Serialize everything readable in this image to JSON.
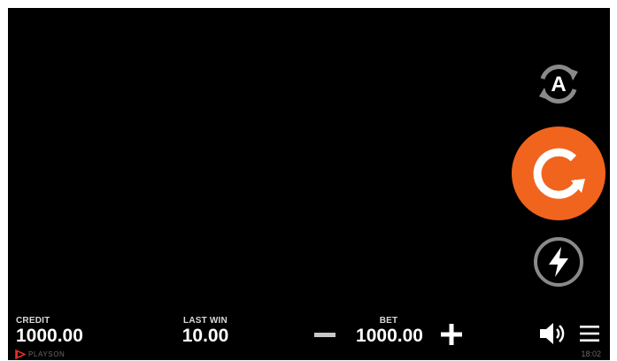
{
  "colors": {
    "background": "#000000",
    "spin_button": "#f0641e",
    "icon_gray": "#8a8a8a",
    "text": "#ffffff",
    "label_text": "#d8d8d8",
    "brand_red": "#e0301e"
  },
  "icons": {
    "autoplay": "autoplay-icon",
    "spin": "spin-icon",
    "turbo": "lightning-icon",
    "bet_minus": "minus-icon",
    "bet_plus": "plus-icon",
    "sound": "speaker-icon",
    "menu": "hamburger-menu-icon",
    "brand": "playson-logo-icon"
  },
  "autoplay": {
    "letter": "A"
  },
  "stats": {
    "credit": {
      "label": "CREDIT",
      "value": "1000.00"
    },
    "last_win": {
      "label": "LAST WIN",
      "value": "10.00"
    },
    "bet": {
      "label": "BET",
      "value": "1000.00"
    }
  },
  "footer": {
    "brand": "PLAYSON",
    "clock": "18:02"
  }
}
